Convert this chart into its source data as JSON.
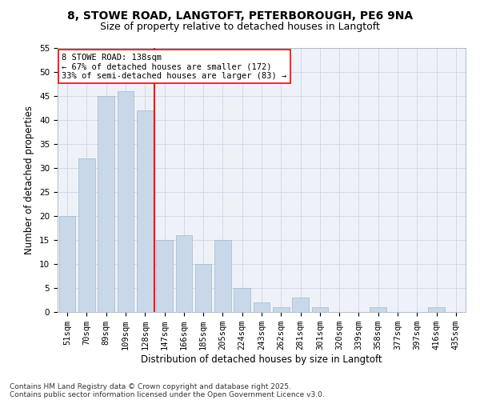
{
  "title1": "8, STOWE ROAD, LANGTOFT, PETERBOROUGH, PE6 9NA",
  "title2": "Size of property relative to detached houses in Langtoft",
  "xlabel": "Distribution of detached houses by size in Langtoft",
  "ylabel": "Number of detached properties",
  "categories": [
    "51sqm",
    "70sqm",
    "89sqm",
    "109sqm",
    "128sqm",
    "147sqm",
    "166sqm",
    "185sqm",
    "205sqm",
    "224sqm",
    "243sqm",
    "262sqm",
    "281sqm",
    "301sqm",
    "320sqm",
    "339sqm",
    "358sqm",
    "377sqm",
    "397sqm",
    "416sqm",
    "435sqm"
  ],
  "values": [
    20,
    32,
    45,
    46,
    42,
    15,
    16,
    10,
    15,
    5,
    2,
    1,
    3,
    1,
    0,
    0,
    1,
    0,
    0,
    1,
    0
  ],
  "bar_color": "#c8d8e8",
  "bar_edge_color": "#a0b8cc",
  "vline_x": 4.5,
  "vline_color": "red",
  "annotation_text": "8 STOWE ROAD: 138sqm\n← 67% of detached houses are smaller (172)\n33% of semi-detached houses are larger (83) →",
  "annotation_box_color": "white",
  "annotation_box_edge_color": "red",
  "ylim": [
    0,
    55
  ],
  "yticks": [
    0,
    5,
    10,
    15,
    20,
    25,
    30,
    35,
    40,
    45,
    50,
    55
  ],
  "grid_color": "#d0d8e8",
  "bg_color": "#eef2f8",
  "footnote1": "Contains HM Land Registry data © Crown copyright and database right 2025.",
  "footnote2": "Contains public sector information licensed under the Open Government Licence v3.0.",
  "title_fontsize": 10,
  "subtitle_fontsize": 9,
  "axis_label_fontsize": 8.5,
  "tick_fontsize": 7.5,
  "annotation_fontsize": 7.5,
  "footnote_fontsize": 6.5
}
